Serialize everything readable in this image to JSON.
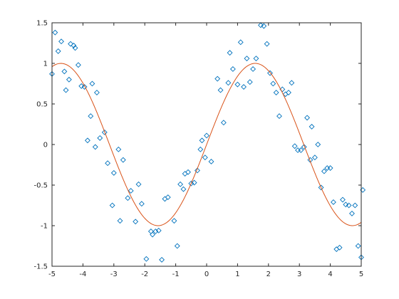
{
  "chart_data": {
    "type": "scatter",
    "title": "",
    "xlabel": "",
    "ylabel": "",
    "xlim": [
      -5,
      5
    ],
    "ylim": [
      -1.5,
      1.5
    ],
    "grid": false,
    "box": true,
    "xticks": [
      -5,
      -4,
      -3,
      -2,
      -1,
      0,
      1,
      2,
      3,
      4,
      5
    ],
    "xtick_labels": [
      "-5",
      "-4",
      "-3",
      "-2",
      "-1",
      "0",
      "1",
      "2",
      "3",
      "4",
      "5"
    ],
    "yticks": [
      -1.5,
      -1,
      -0.5,
      0,
      0.5,
      1,
      1.5
    ],
    "ytick_labels": [
      "-1.5",
      "-1",
      "-0.5",
      "0",
      "0.5",
      "1",
      "1.5"
    ],
    "series": [
      {
        "kind": "scatter",
        "marker": "diamond",
        "color": "#0072BD",
        "points": [
          [
            -5.0,
            0.87
          ],
          [
            -4.9,
            1.38
          ],
          [
            -4.8,
            1.15
          ],
          [
            -4.7,
            1.27
          ],
          [
            -4.6,
            0.9
          ],
          [
            -4.55,
            0.67
          ],
          [
            -4.45,
            0.8
          ],
          [
            -4.4,
            1.24
          ],
          [
            -4.3,
            1.22
          ],
          [
            -4.25,
            1.19
          ],
          [
            -4.15,
            0.98
          ],
          [
            -4.05,
            0.72
          ],
          [
            -3.95,
            0.71
          ],
          [
            -3.75,
            0.35
          ],
          [
            -3.7,
            0.75
          ],
          [
            -3.55,
            0.64
          ],
          [
            -3.85,
            0.05
          ],
          [
            -3.6,
            -0.03
          ],
          [
            -3.45,
            0.08
          ],
          [
            -3.3,
            0.15
          ],
          [
            -3.2,
            -0.23
          ],
          [
            -3.05,
            -0.75
          ],
          [
            -3.0,
            -0.35
          ],
          [
            -2.85,
            -0.06
          ],
          [
            -2.8,
            -0.94
          ],
          [
            -2.7,
            -0.19
          ],
          [
            -2.55,
            -0.66
          ],
          [
            -2.45,
            -0.57
          ],
          [
            -2.3,
            -0.95
          ],
          [
            -2.2,
            -0.49
          ],
          [
            -2.1,
            -0.73
          ],
          [
            -1.95,
            -1.41
          ],
          [
            -1.8,
            -1.07
          ],
          [
            -1.75,
            -1.11
          ],
          [
            -1.65,
            -1.07
          ],
          [
            -1.55,
            -1.06
          ],
          [
            -1.45,
            -1.42
          ],
          [
            -1.35,
            -0.67
          ],
          [
            -1.25,
            -0.65
          ],
          [
            -1.05,
            -0.94
          ],
          [
            -0.95,
            -1.25
          ],
          [
            -0.85,
            -0.49
          ],
          [
            -0.75,
            -0.55
          ],
          [
            -0.7,
            -0.36
          ],
          [
            -0.6,
            -0.34
          ],
          [
            -0.5,
            -0.48
          ],
          [
            -0.4,
            -0.47
          ],
          [
            -0.3,
            -0.32
          ],
          [
            -0.2,
            -0.06
          ],
          [
            -0.15,
            0.05
          ],
          [
            -0.05,
            -0.16
          ],
          [
            0.0,
            0.11
          ],
          [
            0.15,
            -0.21
          ],
          [
            0.35,
            0.81
          ],
          [
            0.45,
            0.67
          ],
          [
            0.55,
            0.27
          ],
          [
            0.7,
            0.76
          ],
          [
            0.75,
            1.13
          ],
          [
            0.85,
            0.93
          ],
          [
            1.0,
            0.74
          ],
          [
            1.1,
            1.26
          ],
          [
            1.2,
            0.71
          ],
          [
            1.3,
            1.06
          ],
          [
            1.4,
            0.77
          ],
          [
            1.5,
            0.93
          ],
          [
            1.6,
            1.06
          ],
          [
            1.75,
            1.47
          ],
          [
            1.85,
            1.46
          ],
          [
            1.95,
            1.24
          ],
          [
            2.05,
            0.88
          ],
          [
            2.15,
            0.75
          ],
          [
            2.25,
            0.64
          ],
          [
            2.35,
            0.35
          ],
          [
            2.45,
            0.68
          ],
          [
            2.55,
            0.62
          ],
          [
            2.65,
            0.64
          ],
          [
            2.75,
            0.76
          ],
          [
            2.85,
            -0.02
          ],
          [
            2.95,
            -0.07
          ],
          [
            3.05,
            -0.07
          ],
          [
            3.15,
            -0.03
          ],
          [
            3.25,
            0.33
          ],
          [
            3.35,
            -0.19
          ],
          [
            3.4,
            0.22
          ],
          [
            3.5,
            -0.16
          ],
          [
            3.6,
            0.0
          ],
          [
            3.7,
            -0.53
          ],
          [
            3.8,
            -0.33
          ],
          [
            3.9,
            -0.29
          ],
          [
            4.0,
            -0.29
          ],
          [
            4.1,
            -0.71
          ],
          [
            4.2,
            -1.29
          ],
          [
            4.3,
            -1.27
          ],
          [
            4.4,
            -0.68
          ],
          [
            4.5,
            -0.74
          ],
          [
            4.6,
            -0.75
          ],
          [
            4.7,
            -0.85
          ],
          [
            4.8,
            -0.75
          ],
          [
            4.9,
            -1.25
          ],
          [
            5.0,
            -1.39
          ],
          [
            5.05,
            -0.56
          ]
        ]
      },
      {
        "kind": "line",
        "color": "#D95319",
        "function": "sin(x)",
        "x_range": [
          -5,
          5
        ],
        "samples": 201
      }
    ]
  }
}
